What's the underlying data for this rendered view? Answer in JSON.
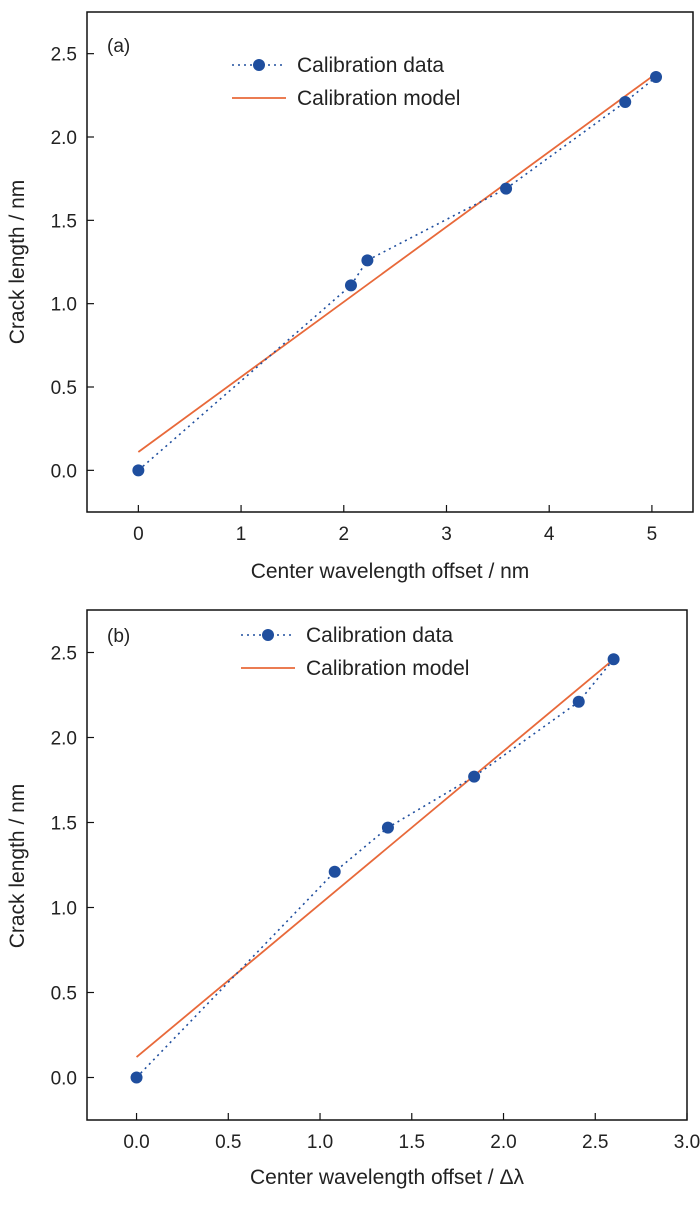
{
  "chart_data": [
    {
      "type": "line",
      "panel_label": "(a)",
      "xlabel": "Center wavelength offset / nm",
      "ylabel": "Crack length / nm",
      "xlim": [
        -0.5,
        5.4
      ],
      "ylim": [
        -0.25,
        2.75
      ],
      "xticks": [
        0,
        1,
        2,
        3,
        4,
        5
      ],
      "xtick_labels": [
        "0",
        "1",
        "2",
        "3",
        "4",
        "5"
      ],
      "yticks": [
        0.0,
        0.5,
        1.0,
        1.5,
        2.0,
        2.5
      ],
      "ytick_labels": [
        "0.0",
        "0.5",
        "1.0",
        "1.5",
        "2.0",
        "2.5"
      ],
      "grid": false,
      "legend_position": "top-center",
      "series": [
        {
          "name": "Calibration data",
          "style": "dotted-line-with-markers",
          "color": "#1f4e9e",
          "x": [
            0,
            2.07,
            2.23,
            3.58,
            4.74,
            5.04
          ],
          "y": [
            0.0,
            1.11,
            1.26,
            1.69,
            2.21,
            2.36
          ]
        },
        {
          "name": "Calibration model",
          "style": "solid-line",
          "color": "#e8693a",
          "x": [
            0,
            5.04
          ],
          "y": [
            0.11,
            2.38
          ]
        }
      ]
    },
    {
      "type": "line",
      "panel_label": "(b)",
      "xlabel": "Center wavelength offset / Δλ",
      "ylabel": "Crack length / nm",
      "xlim": [
        -0.27,
        3.0
      ],
      "ylim": [
        -0.25,
        2.75
      ],
      "xticks": [
        0.0,
        0.5,
        1.0,
        1.5,
        2.0,
        2.5,
        3.0
      ],
      "xtick_labels": [
        "0.0",
        "0.5",
        "1.0",
        "1.5",
        "2.0",
        "2.5",
        "3.0"
      ],
      "yticks": [
        0.0,
        0.5,
        1.0,
        1.5,
        2.0,
        2.5
      ],
      "ytick_labels": [
        "0.0",
        "0.5",
        "1.0",
        "1.5",
        "2.0",
        "2.5"
      ],
      "grid": false,
      "legend_position": "top-center",
      "series": [
        {
          "name": "Calibration data",
          "style": "dotted-line-with-markers",
          "color": "#1f4e9e",
          "x": [
            0.0,
            1.08,
            1.37,
            1.84,
            2.41,
            2.6
          ],
          "y": [
            0.0,
            1.21,
            1.47,
            1.77,
            2.21,
            2.46
          ]
        },
        {
          "name": "Calibration model",
          "style": "solid-line",
          "color": "#e8693a",
          "x": [
            0.0,
            2.6
          ],
          "y": [
            0.12,
            2.46
          ]
        }
      ]
    }
  ]
}
